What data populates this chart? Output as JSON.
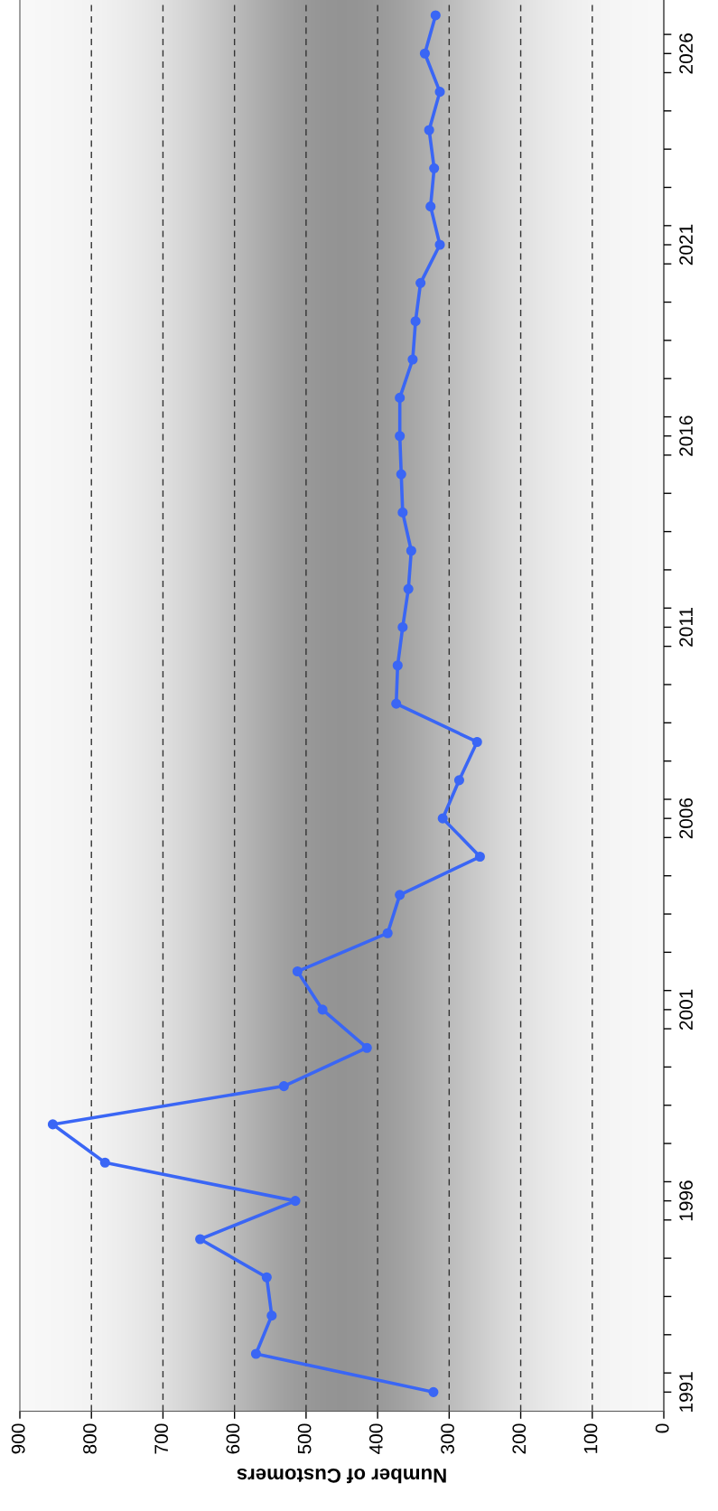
{
  "chart_data": {
    "type": "line",
    "xlabel": "Number of Customers",
    "series": [
      {
        "color": "#3a66f5",
        "x": [
          322,
          570,
          548,
          555,
          648,
          515,
          781,
          854,
          531,
          415,
          477,
          512,
          386,
          369,
          257,
          309,
          286,
          261,
          374,
          372,
          365,
          357,
          353,
          365,
          367,
          369,
          369,
          351,
          347,
          340,
          313,
          326,
          321,
          328,
          313,
          334,
          319
        ],
        "values": [
          1991,
          1992,
          1993,
          1994,
          1995,
          1996,
          1997,
          1998,
          1999,
          2000,
          2001,
          2002,
          2003,
          2004,
          2005,
          2006,
          2007,
          2008,
          2009,
          2010,
          2011,
          2012,
          2013,
          2014,
          2015,
          2016,
          2017,
          2018,
          2019,
          2020,
          2021,
          2022,
          2023,
          2024,
          2025,
          2026,
          2027
        ]
      }
    ],
    "xlim": [
      900,
      0
    ],
    "xticks": [
      0,
      100,
      200,
      300,
      400,
      500,
      600,
      700,
      800,
      900
    ],
    "ylim": [
      1990.5,
      2027.4
    ],
    "yticks": [
      {
        "value": 1991,
        "label": "1991"
      },
      {
        "value": 1996,
        "label": "1996"
      },
      {
        "value": 2001,
        "label": "2001"
      },
      {
        "value": 2006,
        "label": "2006"
      },
      {
        "value": 2011,
        "label": "2011"
      },
      {
        "value": 2016,
        "label": "2016"
      },
      {
        "value": 2021,
        "label": "2021"
      },
      {
        "value": 2026,
        "label": "2026"
      },
      {
        "value": 1991.5,
        "label": null
      },
      {
        "value": 1992.5,
        "label": null
      },
      {
        "value": 1993.5,
        "label": null
      },
      {
        "value": 1994.5,
        "label": null
      },
      {
        "value": 1995.5,
        "label": null
      },
      {
        "value": 1996.5,
        "label": null
      },
      {
        "value": 1997.5,
        "label": null
      },
      {
        "value": 1998.5,
        "label": null
      },
      {
        "value": 1999.5,
        "label": null
      },
      {
        "value": 2000.5,
        "label": null
      },
      {
        "value": 2001.5,
        "label": null
      },
      {
        "value": 2002.5,
        "label": null
      },
      {
        "value": 2003.5,
        "label": null
      },
      {
        "value": 2004.5,
        "label": null
      },
      {
        "value": 2005.5,
        "label": null
      },
      {
        "value": 2006.5,
        "label": null
      },
      {
        "value": 2007.5,
        "label": null
      },
      {
        "value": 2008.5,
        "label": null
      },
      {
        "value": 2009.5,
        "label": null
      },
      {
        "value": 2010.5,
        "label": null
      },
      {
        "value": 2011.5,
        "label": null
      },
      {
        "value": 2012.5,
        "label": null
      },
      {
        "value": 2013.5,
        "label": null
      },
      {
        "value": 2014.5,
        "label": null
      },
      {
        "value": 2015.5,
        "label": null
      },
      {
        "value": 2016.5,
        "label": null
      },
      {
        "value": 2017.5,
        "label": null
      },
      {
        "value": 2018.5,
        "label": null
      },
      {
        "value": 2019.5,
        "label": null
      },
      {
        "value": 2020.5,
        "label": null
      },
      {
        "value": 2021.5,
        "label": null
      },
      {
        "value": 2022.5,
        "label": null
      },
      {
        "value": 2023.5,
        "label": null
      },
      {
        "value": 2024.5,
        "label": null
      },
      {
        "value": 2025.5,
        "label": null
      },
      {
        "value": 2026.5,
        "label": null
      }
    ],
    "grid": "x",
    "marker": "circle",
    "line_style": "solid"
  }
}
